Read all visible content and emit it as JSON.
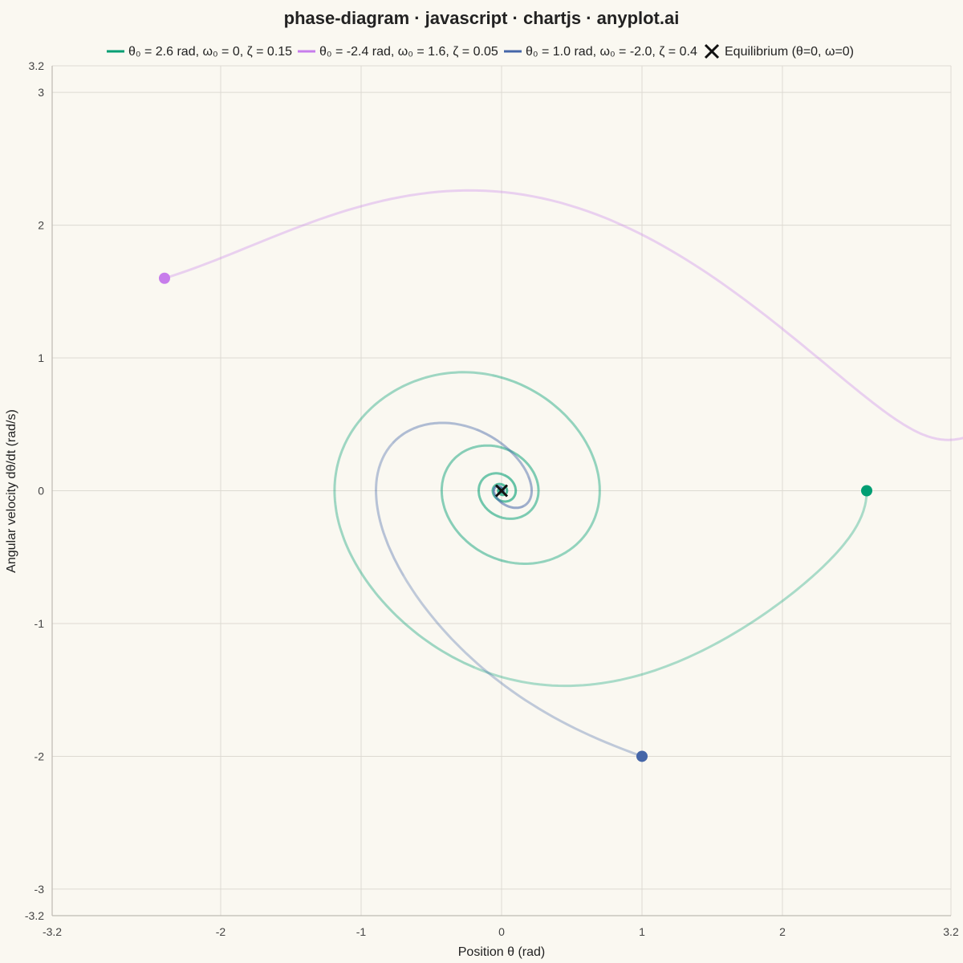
{
  "chart_data": {
    "type": "line",
    "title": "phase-diagram · javascript · chartjs · anyplot.ai",
    "xlabel": "Position θ (rad)",
    "ylabel": "Angular velocity dθ/dt (rad/s)",
    "xlim": [
      -3.2,
      3.2
    ],
    "ylim": [
      -3.2,
      3.2
    ],
    "x_ticks": [
      -3.2,
      -2,
      -1,
      0,
      1,
      2,
      3.2
    ],
    "x_tick_labels": [
      "-3.2",
      "-2",
      "-1",
      "0",
      "1",
      "2",
      "3.2"
    ],
    "y_ticks": [
      -3.2,
      -3,
      -2,
      -1,
      0,
      1,
      2,
      3,
      3.2
    ],
    "y_tick_labels": [
      "-3.2",
      "-3",
      "-2",
      "-1",
      "0",
      "1",
      "2",
      "3",
      "3.2"
    ],
    "grid": true,
    "legend_position": "top",
    "series": [
      {
        "name": "θ₀ = 2.6 rad, ω₀ = 0, ζ = 0.15",
        "color": "#009E73",
        "theta0": 2.6,
        "omega0": 0,
        "zeta": 0.15,
        "start": [
          2.6,
          0
        ]
      },
      {
        "name": "θ₀ = -2.4 rad, ω₀ = 1.6, ζ = 0.05",
        "color": "#C77DEB",
        "theta0": -2.4,
        "omega0": 1.6,
        "zeta": 0.05,
        "start": [
          -2.4,
          1.6
        ]
      },
      {
        "name": "θ₀ = 1.0 rad, ω₀ = -2.0, ζ = 0.4",
        "color": "#4566A8",
        "theta0": 1.0,
        "omega0": -2.0,
        "zeta": 0.4,
        "start": [
          1.0,
          -2.0
        ]
      }
    ],
    "equilibrium": {
      "name": "Equilibrium (θ=0, ω=0)",
      "x": 0,
      "y": 0,
      "color": "#111111"
    }
  }
}
